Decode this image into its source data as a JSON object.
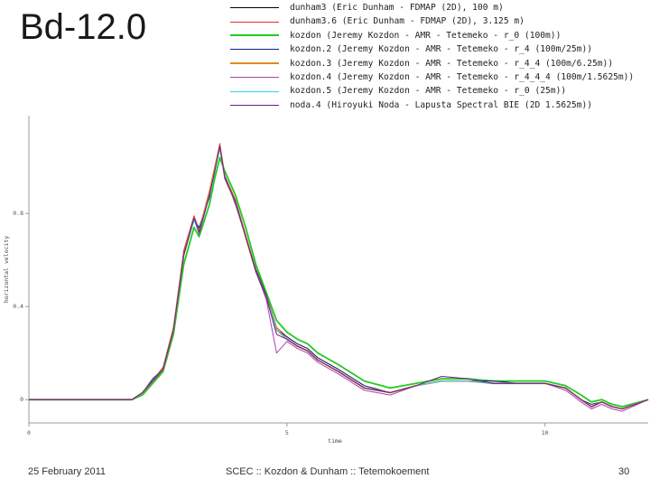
{
  "slide": {
    "title": "Bd-12.0",
    "footer_date": "25 February 2011",
    "footer_center": "SCEC :: Kozdon & Dunham :: Tetemokoement",
    "page_number": "30"
  },
  "chart_data": {
    "type": "line",
    "title": "",
    "xlabel": "time",
    "ylabel": "horizontal velocity",
    "xlim": [
      0,
      12
    ],
    "ylim": [
      -0.1,
      1.22
    ],
    "xticks": [
      0,
      5,
      10
    ],
    "yticks": [
      0,
      0.4,
      0.8
    ],
    "xtick_labels": [
      "0",
      "5",
      "10"
    ],
    "ytick_labels": [
      "0",
      "0.4",
      "0.8"
    ],
    "grid": false,
    "legend_placement": "top",
    "series": [
      {
        "name": "dunham3 (Eric Dunham - FDMAP (2D), 100 m)",
        "color": "#000000",
        "width": 1,
        "x": [
          0,
          2.0,
          2.2,
          2.4,
          2.6,
          2.8,
          3.0,
          3.2,
          3.3,
          3.5,
          3.6,
          3.7,
          3.8,
          4.0,
          4.2,
          4.4,
          4.6,
          4.8,
          5.0,
          5.2,
          5.4,
          5.6,
          6.0,
          6.5,
          7.0,
          7.5,
          8.0,
          8.5,
          9.0,
          9.5,
          10.0,
          10.4,
          10.7,
          10.9,
          11.1,
          11.3,
          11.5,
          12.0
        ],
        "y": [
          0,
          0,
          0.03,
          0.08,
          0.13,
          0.3,
          0.62,
          0.78,
          0.72,
          0.88,
          0.98,
          1.09,
          0.95,
          0.85,
          0.7,
          0.55,
          0.44,
          0.3,
          0.26,
          0.23,
          0.21,
          0.17,
          0.12,
          0.05,
          0.03,
          0.06,
          0.08,
          0.08,
          0.07,
          0.07,
          0.07,
          0.05,
          0.0,
          -0.03,
          -0.01,
          -0.03,
          -0.04,
          0.0
        ]
      },
      {
        "name": "dunham3.6 (Eric Dunham - FDMAP (2D), 3.125 m)",
        "color": "#e03030",
        "width": 1,
        "x": [
          0,
          2.0,
          2.2,
          2.4,
          2.6,
          2.8,
          3.0,
          3.2,
          3.3,
          3.5,
          3.6,
          3.7,
          3.8,
          4.0,
          4.2,
          4.4,
          4.6,
          4.8,
          5.0,
          5.2,
          5.4,
          5.6,
          6.0,
          6.5,
          7.0,
          7.5,
          8.0,
          8.5,
          9.0,
          9.5,
          10.0,
          10.4,
          10.7,
          10.9,
          11.1,
          11.3,
          11.5,
          12.0
        ],
        "y": [
          0,
          0,
          0.03,
          0.08,
          0.14,
          0.31,
          0.64,
          0.79,
          0.73,
          0.9,
          1.0,
          1.1,
          0.96,
          0.86,
          0.71,
          0.56,
          0.45,
          0.31,
          0.27,
          0.24,
          0.22,
          0.18,
          0.13,
          0.06,
          0.03,
          0.06,
          0.08,
          0.08,
          0.07,
          0.07,
          0.07,
          0.05,
          0.0,
          -0.03,
          -0.01,
          -0.03,
          -0.04,
          0.0
        ]
      },
      {
        "name": "kozdon (Jeremy Kozdon - AMR - Tetemeko - r_0 (100m))",
        "color": "#22cc22",
        "width": 1.8,
        "x": [
          0,
          2.0,
          2.2,
          2.4,
          2.6,
          2.8,
          3.0,
          3.2,
          3.3,
          3.5,
          3.6,
          3.7,
          3.8,
          4.0,
          4.2,
          4.4,
          4.6,
          4.8,
          5.0,
          5.2,
          5.4,
          5.6,
          6.0,
          6.5,
          7.0,
          7.5,
          8.0,
          8.5,
          9.0,
          9.5,
          10.0,
          10.4,
          10.7,
          10.9,
          11.1,
          11.3,
          11.5,
          12.0
        ],
        "y": [
          0,
          0,
          0.02,
          0.07,
          0.12,
          0.28,
          0.58,
          0.74,
          0.7,
          0.84,
          0.95,
          1.04,
          0.98,
          0.88,
          0.74,
          0.58,
          0.46,
          0.34,
          0.29,
          0.26,
          0.24,
          0.2,
          0.15,
          0.08,
          0.05,
          0.07,
          0.09,
          0.09,
          0.08,
          0.08,
          0.08,
          0.06,
          0.02,
          -0.01,
          0.0,
          -0.02,
          -0.03,
          0.0
        ]
      },
      {
        "name": "kozdon.2 (Jeremy Kozdon - AMR - Tetemeko - r_4 (100m/25m))",
        "color": "#1a1a80",
        "width": 1,
        "x": [
          0,
          2.0,
          2.2,
          2.4,
          2.6,
          2.8,
          3.0,
          3.2,
          3.3,
          3.5,
          3.6,
          3.7,
          3.8,
          4.0,
          4.2,
          4.4,
          4.6,
          4.8,
          5.0,
          5.2,
          5.4,
          5.6,
          6.0,
          6.5,
          7.0,
          7.5,
          8.0,
          8.5,
          9.0,
          9.5,
          10.0,
          10.4,
          10.7,
          10.9,
          11.1,
          11.3,
          11.5,
          12.0
        ],
        "y": [
          0,
          0,
          0.03,
          0.09,
          0.13,
          0.3,
          0.63,
          0.77,
          0.74,
          0.87,
          0.99,
          1.08,
          0.96,
          0.84,
          0.7,
          0.56,
          0.45,
          0.3,
          0.27,
          0.24,
          0.22,
          0.18,
          0.13,
          0.06,
          0.03,
          0.06,
          0.08,
          0.08,
          0.08,
          0.07,
          0.07,
          0.05,
          0.0,
          -0.02,
          -0.01,
          -0.03,
          -0.04,
          0.0
        ]
      },
      {
        "name": "kozdon.3 (Jeremy Kozdon - AMR - Tetemeko - r_4_4 (100m/6.25m))",
        "color": "#e08a20",
        "width": 1.8,
        "x": [
          0,
          2.0,
          2.2,
          2.4,
          2.6,
          2.8,
          3.0,
          3.2,
          3.3,
          3.5,
          3.6,
          3.7,
          3.8,
          4.0,
          4.2,
          4.4,
          4.6,
          4.8,
          5.0,
          5.2,
          5.4,
          5.6,
          6.0,
          6.5,
          7.0,
          7.5,
          8.0,
          8.5,
          9.0,
          9.5,
          10.0,
          10.4,
          10.7,
          10.9,
          11.1,
          11.3,
          11.5,
          12.0
        ],
        "y": [
          0,
          0,
          0.03,
          0.08,
          0.13,
          0.3,
          0.62,
          0.78,
          0.72,
          0.89,
          0.99,
          1.09,
          0.95,
          0.85,
          0.7,
          0.55,
          0.44,
          0.3,
          0.26,
          0.23,
          0.21,
          0.17,
          0.12,
          0.05,
          0.03,
          0.06,
          0.08,
          0.08,
          0.07,
          0.07,
          0.07,
          0.05,
          0.0,
          -0.03,
          -0.01,
          -0.03,
          -0.04,
          0.0
        ]
      },
      {
        "name": "kozdon.4 (Jeremy Kozdon - AMR - Tetemeko - r_4_4_4 (100m/1.5625m))",
        "color": "#b040b0",
        "width": 1,
        "x": [
          0,
          2.0,
          2.2,
          2.4,
          2.6,
          2.8,
          3.0,
          3.2,
          3.3,
          3.5,
          3.6,
          3.7,
          3.8,
          4.0,
          4.2,
          4.4,
          4.6,
          4.8,
          5.0,
          5.2,
          5.4,
          5.6,
          6.0,
          6.5,
          7.0,
          7.5,
          8.0,
          8.5,
          9.0,
          9.5,
          10.0,
          10.4,
          10.7,
          10.9,
          11.1,
          11.3,
          11.5,
          12.0
        ],
        "y": [
          0,
          0,
          0.03,
          0.08,
          0.13,
          0.3,
          0.62,
          0.78,
          0.71,
          0.88,
          0.98,
          1.09,
          0.95,
          0.85,
          0.7,
          0.55,
          0.43,
          0.2,
          0.25,
          0.22,
          0.2,
          0.16,
          0.11,
          0.04,
          0.02,
          0.06,
          0.08,
          0.08,
          0.07,
          0.07,
          0.07,
          0.04,
          -0.01,
          -0.04,
          -0.02,
          -0.04,
          -0.05,
          0.0
        ]
      },
      {
        "name": "kozdon.5 (Jeremy Kozdon - AMR - Tetemeko - r_0 (25m))",
        "color": "#30d8e8",
        "width": 1,
        "x": [
          0,
          2.0,
          2.2,
          2.4,
          2.6,
          2.8,
          3.0,
          3.2,
          3.3,
          3.5,
          3.6,
          3.7,
          3.8,
          4.0,
          4.2,
          4.4,
          4.6,
          4.8,
          5.0,
          5.2,
          5.4,
          5.6,
          6.0,
          6.5,
          7.0,
          7.5,
          8.0,
          8.5,
          9.0,
          9.5,
          10.0,
          10.4,
          10.7,
          10.9,
          11.1,
          11.3,
          11.5,
          12.0
        ],
        "y": [
          0,
          0,
          0.03,
          0.08,
          0.13,
          0.3,
          0.62,
          0.77,
          0.72,
          0.88,
          0.98,
          1.08,
          0.95,
          0.85,
          0.7,
          0.55,
          0.44,
          0.3,
          0.26,
          0.23,
          0.21,
          0.17,
          0.12,
          0.05,
          0.03,
          0.06,
          0.08,
          0.08,
          0.07,
          0.07,
          0.07,
          0.05,
          0.0,
          -0.03,
          -0.01,
          -0.03,
          -0.04,
          0.0
        ]
      },
      {
        "name": "noda.4 (Hiroyuki Noda - Lapusta Spectral BIE (2D 1.5625m))",
        "color": "#6a1a8a",
        "width": 1,
        "x": [
          0,
          2.0,
          2.2,
          2.4,
          2.6,
          2.8,
          3.0,
          3.2,
          3.3,
          3.5,
          3.6,
          3.7,
          3.8,
          4.0,
          4.2,
          4.4,
          4.6,
          4.8,
          5.0,
          5.2,
          5.4,
          5.6,
          6.0,
          6.5,
          7.0,
          7.5,
          8.0,
          8.5,
          9.0,
          9.5,
          10.0,
          10.4,
          10.7,
          10.9,
          11.1,
          11.3,
          11.5,
          12.0
        ],
        "y": [
          0,
          0,
          0.03,
          0.08,
          0.13,
          0.3,
          0.62,
          0.78,
          0.72,
          0.88,
          0.98,
          1.09,
          0.95,
          0.85,
          0.7,
          0.55,
          0.44,
          0.28,
          0.26,
          0.23,
          0.21,
          0.17,
          0.12,
          0.05,
          0.03,
          0.06,
          0.1,
          0.09,
          0.07,
          0.07,
          0.07,
          0.05,
          0.0,
          -0.03,
          -0.01,
          -0.03,
          -0.04,
          0.0
        ]
      }
    ]
  }
}
